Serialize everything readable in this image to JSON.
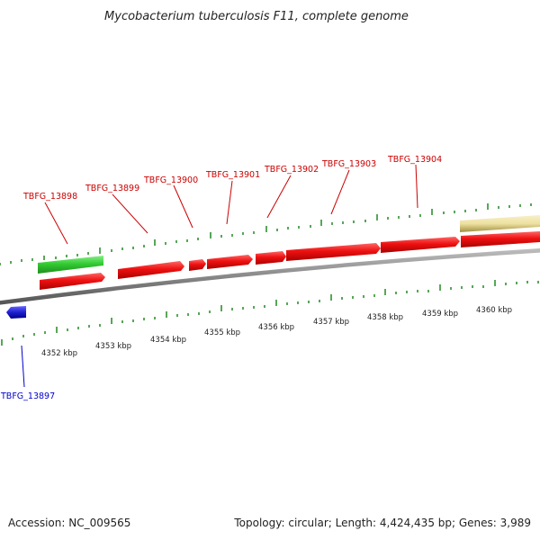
{
  "title": "Mycobacterium tuberculosis F11, complete genome",
  "footer": {
    "accession": "Accession: NC_009565",
    "summary": "Topology: circular; Length: 4,424,435 bp; Genes: 3,989"
  },
  "colors": {
    "forward_gene": "#ee1111",
    "reverse_gene": "#1f1fd0",
    "green_feature": "#33cc33",
    "yellow_feature": "#eee0a0",
    "tick": "#2f8f2f",
    "backbone": "#777777",
    "forward_label": "#cc0000",
    "reverse_label": "#0000cc"
  },
  "kbp_labels": [
    "4352 kbp",
    "4353 kbp",
    "4354 kbp",
    "4355 kbp",
    "4356 kbp",
    "4357 kbp",
    "4358 kbp",
    "4359 kbp",
    "4360 kbp"
  ],
  "genes": [
    {
      "id": "TBFG_13897",
      "strand": "-"
    },
    {
      "id": "TBFG_13898",
      "strand": "+"
    },
    {
      "id": "TBFG_13899",
      "strand": "+"
    },
    {
      "id": "TBFG_13900",
      "strand": "+"
    },
    {
      "id": "TBFG_13901",
      "strand": "+"
    },
    {
      "id": "TBFG_13902",
      "strand": "+"
    },
    {
      "id": "TBFG_13903",
      "strand": "+"
    },
    {
      "id": "TBFG_13904",
      "strand": "+"
    }
  ]
}
